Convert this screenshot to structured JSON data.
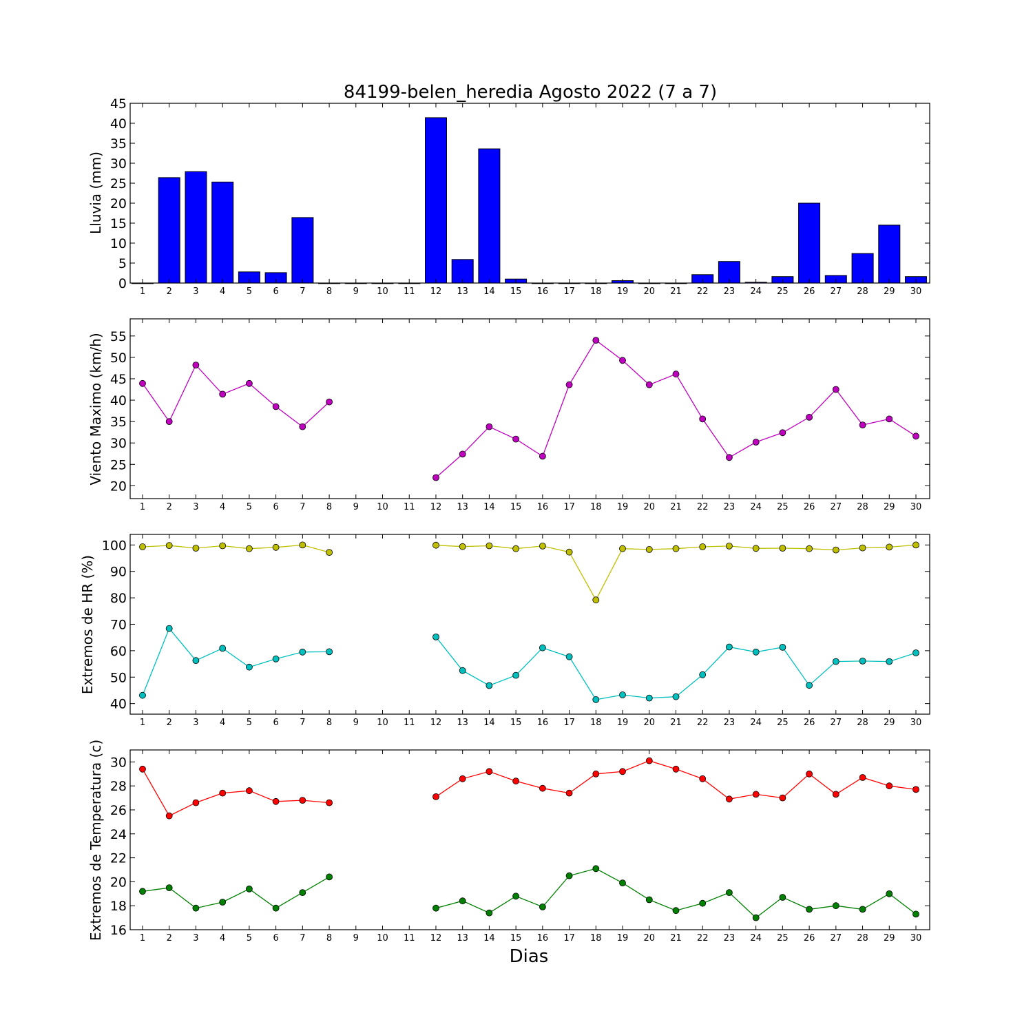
{
  "figure": {
    "title": "84199-belen_heredia Agosto 2022  (7 a 7)",
    "xlabel": "Dias"
  },
  "chart_data": [
    {
      "type": "bar",
      "ylabel": "Lluvia (mm)",
      "ylim": [
        0,
        45
      ],
      "yticks": [
        0,
        5,
        10,
        15,
        20,
        25,
        30,
        35,
        40,
        45
      ],
      "categories": [
        "1",
        "2",
        "3",
        "4",
        "5",
        "6",
        "7",
        "8",
        "9",
        "10",
        "11",
        "12",
        "13",
        "14",
        "15",
        "16",
        "17",
        "18",
        "19",
        "20",
        "21",
        "22",
        "23",
        "24",
        "25",
        "26",
        "27",
        "28",
        "29",
        "30"
      ],
      "series": [
        {
          "color": "#0000ff",
          "values": [
            0,
            26.4,
            27.9,
            25.3,
            2.8,
            2.6,
            16.4,
            0,
            0,
            0,
            0,
            41.4,
            5.9,
            33.6,
            1.0,
            0,
            0,
            0,
            0.6,
            0,
            0,
            2.1,
            5.4,
            0.2,
            1.6,
            20.0,
            1.9,
            7.4,
            14.5,
            1.6
          ]
        }
      ]
    },
    {
      "type": "line",
      "ylabel": "Viento Maximo (km/h)",
      "ylim": [
        17,
        59
      ],
      "yticks": [
        20,
        25,
        30,
        35,
        40,
        45,
        50,
        55
      ],
      "categories": [
        "1",
        "2",
        "3",
        "4",
        "5",
        "6",
        "7",
        "8",
        "9",
        "10",
        "11",
        "12",
        "13",
        "14",
        "15",
        "16",
        "17",
        "18",
        "19",
        "20",
        "21",
        "22",
        "23",
        "24",
        "25",
        "26",
        "27",
        "28",
        "29",
        "30"
      ],
      "series": [
        {
          "color": "#bf00bf",
          "values": [
            43.9,
            35.0,
            48.2,
            41.4,
            43.9,
            38.5,
            33.8,
            39.6,
            null,
            null,
            null,
            21.9,
            27.4,
            33.8,
            30.9,
            26.9,
            43.6,
            54.0,
            49.3,
            43.6,
            46.1,
            35.6,
            26.6,
            30.2,
            32.4,
            36.0,
            42.5,
            34.2,
            35.6,
            31.6
          ]
        }
      ]
    },
    {
      "type": "line",
      "ylabel": "Extremos de HR (%)",
      "ylim": [
        36,
        104
      ],
      "yticks": [
        40,
        50,
        60,
        70,
        80,
        90,
        100
      ],
      "categories": [
        "1",
        "2",
        "3",
        "4",
        "5",
        "6",
        "7",
        "8",
        "9",
        "10",
        "11",
        "12",
        "13",
        "14",
        "15",
        "16",
        "17",
        "18",
        "19",
        "20",
        "21",
        "22",
        "23",
        "24",
        "25",
        "26",
        "27",
        "28",
        "29",
        "30"
      ],
      "series": [
        {
          "color": "#bfbf00",
          "values": [
            99.3,
            99.8,
            98.8,
            99.7,
            98.6,
            99.1,
            100.0,
            97.2,
            null,
            null,
            null,
            99.9,
            99.4,
            99.7,
            98.6,
            99.6,
            97.3,
            79.2,
            98.6,
            98.3,
            98.6,
            99.3,
            99.6,
            98.7,
            98.8,
            98.6,
            98.1,
            98.9,
            99.2,
            100.0
          ]
        },
        {
          "color": "#00bfbf",
          "values": [
            43.1,
            68.4,
            56.3,
            60.9,
            53.8,
            56.9,
            59.5,
            59.6,
            null,
            null,
            null,
            65.2,
            52.5,
            46.8,
            50.7,
            61.1,
            57.7,
            41.5,
            43.3,
            42.1,
            42.6,
            50.9,
            61.4,
            59.5,
            61.3,
            46.9,
            55.9,
            56.1,
            55.9,
            59.2
          ]
        }
      ]
    },
    {
      "type": "line",
      "ylabel": "Extremos de Temperatura (c)",
      "ylim": [
        16,
        31
      ],
      "yticks": [
        16,
        18,
        20,
        22,
        24,
        26,
        28,
        30
      ],
      "categories": [
        "1",
        "2",
        "3",
        "4",
        "5",
        "6",
        "7",
        "8",
        "9",
        "10",
        "11",
        "12",
        "13",
        "14",
        "15",
        "16",
        "17",
        "18",
        "19",
        "20",
        "21",
        "22",
        "23",
        "24",
        "25",
        "26",
        "27",
        "28",
        "29",
        "30"
      ],
      "series": [
        {
          "color": "#ff0000",
          "values": [
            29.4,
            25.5,
            26.6,
            27.4,
            27.6,
            26.7,
            26.8,
            26.6,
            null,
            null,
            null,
            27.1,
            28.6,
            29.2,
            28.4,
            27.8,
            27.4,
            29.0,
            29.2,
            30.1,
            29.4,
            28.6,
            26.9,
            27.3,
            27.0,
            29.0,
            27.3,
            28.7,
            28.0,
            27.7
          ]
        },
        {
          "color": "#008000",
          "values": [
            19.2,
            19.5,
            17.8,
            18.3,
            19.4,
            17.8,
            19.1,
            20.4,
            null,
            null,
            null,
            17.8,
            18.4,
            17.4,
            18.8,
            17.9,
            20.5,
            21.1,
            19.9,
            18.5,
            17.6,
            18.2,
            19.1,
            17.0,
            18.7,
            17.7,
            18.0,
            17.7,
            19.0,
            17.3
          ]
        }
      ]
    }
  ]
}
